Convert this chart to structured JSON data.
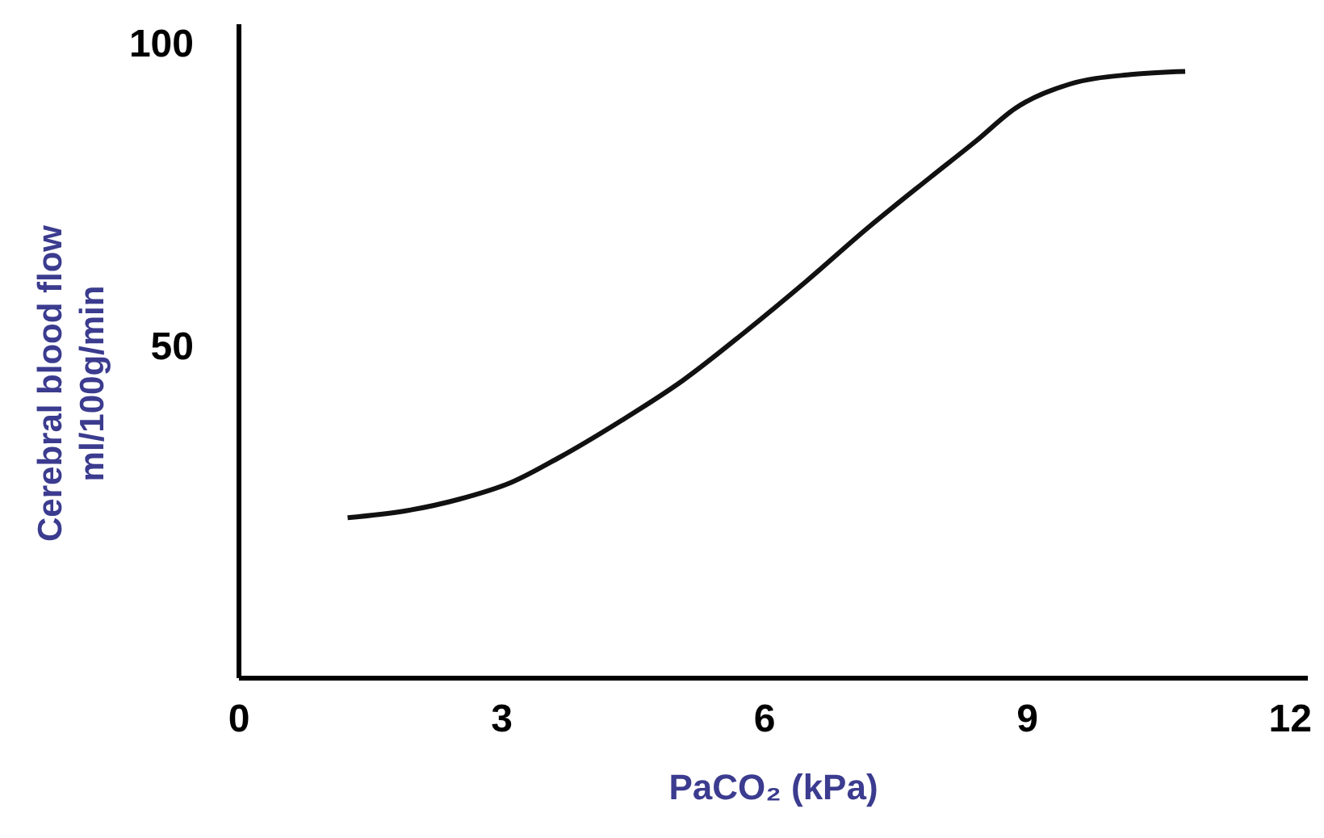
{
  "chart_data": {
    "type": "line",
    "xlabel": "PaCO₂ (kPa)",
    "ylabel": "Cerebral blood flow\nml/100g/min",
    "x": [
      1.24,
      1.89,
      2.5,
      3.12,
      3.65,
      4.36,
      5.06,
      5.77,
      6.48,
      7.18,
      7.89,
      8.42,
      8.86,
      9.48,
      10.18,
      10.8
    ],
    "series": [
      {
        "color": "#111111",
        "values": [
          21.5,
          22.6,
          24.5,
          27.4,
          31.4,
          37.5,
          44.1,
          52.1,
          60.6,
          69.4,
          77.7,
          83.8,
          89.1,
          93.1,
          94.7,
          95.2
        ]
      }
    ],
    "xlim": [
      0,
      12.2
    ],
    "xticks": [
      0,
      3,
      6,
      9,
      12
    ],
    "ylim": [
      -5,
      103
    ],
    "yticks": [
      50,
      100
    ],
    "grid": false,
    "legend": false,
    "marker": "none",
    "line_style": "solid"
  }
}
